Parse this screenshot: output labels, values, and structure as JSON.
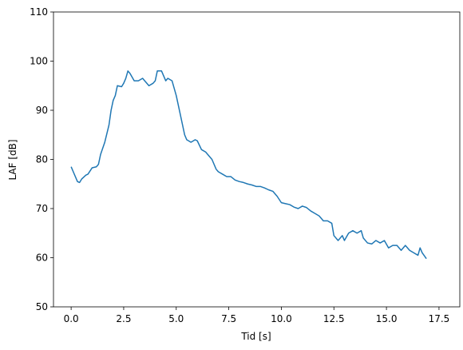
{
  "chart_data": {
    "type": "line",
    "xlabel": "Tid [s]",
    "ylabel": "LAF [dB]",
    "color": "#1f77b4",
    "x": [
      0.0,
      0.1,
      0.3,
      0.4,
      0.5,
      0.7,
      0.8,
      1.0,
      1.2,
      1.3,
      1.4,
      1.6,
      1.8,
      1.9,
      2.0,
      2.1,
      2.2,
      2.4,
      2.5,
      2.6,
      2.7,
      2.8,
      3.0,
      3.2,
      3.4,
      3.5,
      3.7,
      3.9,
      4.0,
      4.1,
      4.3,
      4.5,
      4.6,
      4.8,
      5.0,
      5.2,
      5.4,
      5.5,
      5.7,
      5.9,
      6.0,
      6.2,
      6.4,
      6.5,
      6.7,
      6.9,
      7.0,
      7.2,
      7.4,
      7.6,
      7.8,
      8.0,
      8.2,
      8.4,
      8.6,
      8.8,
      9.0,
      9.2,
      9.4,
      9.6,
      9.8,
      10.0,
      10.2,
      10.4,
      10.6,
      10.8,
      11.0,
      11.2,
      11.4,
      11.6,
      11.8,
      12.0,
      12.2,
      12.4,
      12.5,
      12.7,
      12.9,
      13.0,
      13.2,
      13.4,
      13.6,
      13.8,
      13.9,
      14.1,
      14.3,
      14.5,
      14.7,
      14.9,
      15.1,
      15.3,
      15.5,
      15.7,
      15.9,
      16.1,
      16.3,
      16.5,
      16.6,
      16.7,
      16.9
    ],
    "values": [
      78.5,
      77.5,
      75.5,
      75.3,
      76,
      76.8,
      77,
      78.3,
      78.5,
      79,
      81,
      83.5,
      87,
      90,
      92,
      93,
      95,
      94.8,
      95.5,
      96.5,
      98,
      97.5,
      96,
      96,
      96.5,
      96,
      95,
      95.5,
      96,
      98,
      98,
      96,
      96.5,
      96,
      93,
      89,
      85,
      84,
      83.5,
      84,
      83.8,
      82,
      81.5,
      81,
      80,
      78,
      77.5,
      77,
      76.5,
      76.5,
      75.8,
      75.5,
      75.3,
      75,
      74.8,
      74.5,
      74.5,
      74.2,
      73.8,
      73.5,
      72.5,
      71.2,
      71,
      70.8,
      70.3,
      70,
      70.5,
      70.2,
      69.5,
      69,
      68.5,
      67.5,
      67.5,
      67,
      64.5,
      63.5,
      64.5,
      63.5,
      65,
      65.5,
      65,
      65.5,
      64,
      63,
      62.8,
      63.5,
      63,
      63.5,
      62,
      62.5,
      62.5,
      61.5,
      62.5,
      61.5,
      61,
      60.5,
      62,
      61,
      59.8
    ],
    "xlim": [
      -0.84,
      18.49
    ],
    "ylim": [
      50,
      110
    ],
    "xticks": [
      {
        "value": 0,
        "label": "0.0"
      },
      2.5,
      {
        "value": 5,
        "label": "5.0"
      },
      7.5,
      {
        "value": 10,
        "label": "10.0"
      },
      12.5,
      {
        "value": 15,
        "label": "15.0"
      },
      17.5
    ],
    "yticks": [
      50,
      60,
      70,
      80,
      90,
      100,
      110
    ]
  }
}
